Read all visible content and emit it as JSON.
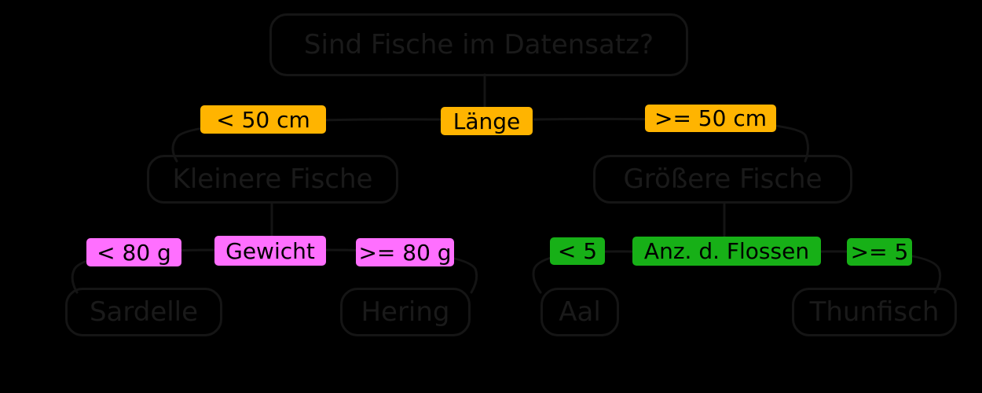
{
  "diagram": {
    "root": {
      "text": "Sind Fische im Datensatz?"
    },
    "questions": [
      {
        "text": "Länge",
        "color": "#ffb400"
      },
      {
        "text": "Gewicht",
        "color": "#ff6fff"
      },
      {
        "text": "Anz. d. Flossen",
        "color": "#17b017"
      }
    ],
    "conditions": [
      {
        "text": "< 50 cm",
        "color": "#ffb400"
      },
      {
        "text": ">= 50 cm",
        "color": "#ffb400"
      },
      {
        "text": "< 80 g",
        "color": "#ff6fff"
      },
      {
        "text": ">= 80 g",
        "color": "#ff6fff"
      },
      {
        "text": "< 5",
        "color": "#17b017"
      },
      {
        "text": ">= 5",
        "color": "#17b017"
      }
    ],
    "intermediate_nodes": [
      {
        "text": "Kleinere Fische"
      },
      {
        "text": "Größere Fische"
      }
    ],
    "leaves": [
      {
        "text": "Sardelle"
      },
      {
        "text": "Hering"
      },
      {
        "text": "Aal"
      },
      {
        "text": "Thunfisch"
      }
    ],
    "edge_color": "#141414",
    "node_text_color": "#1a1a1a"
  }
}
